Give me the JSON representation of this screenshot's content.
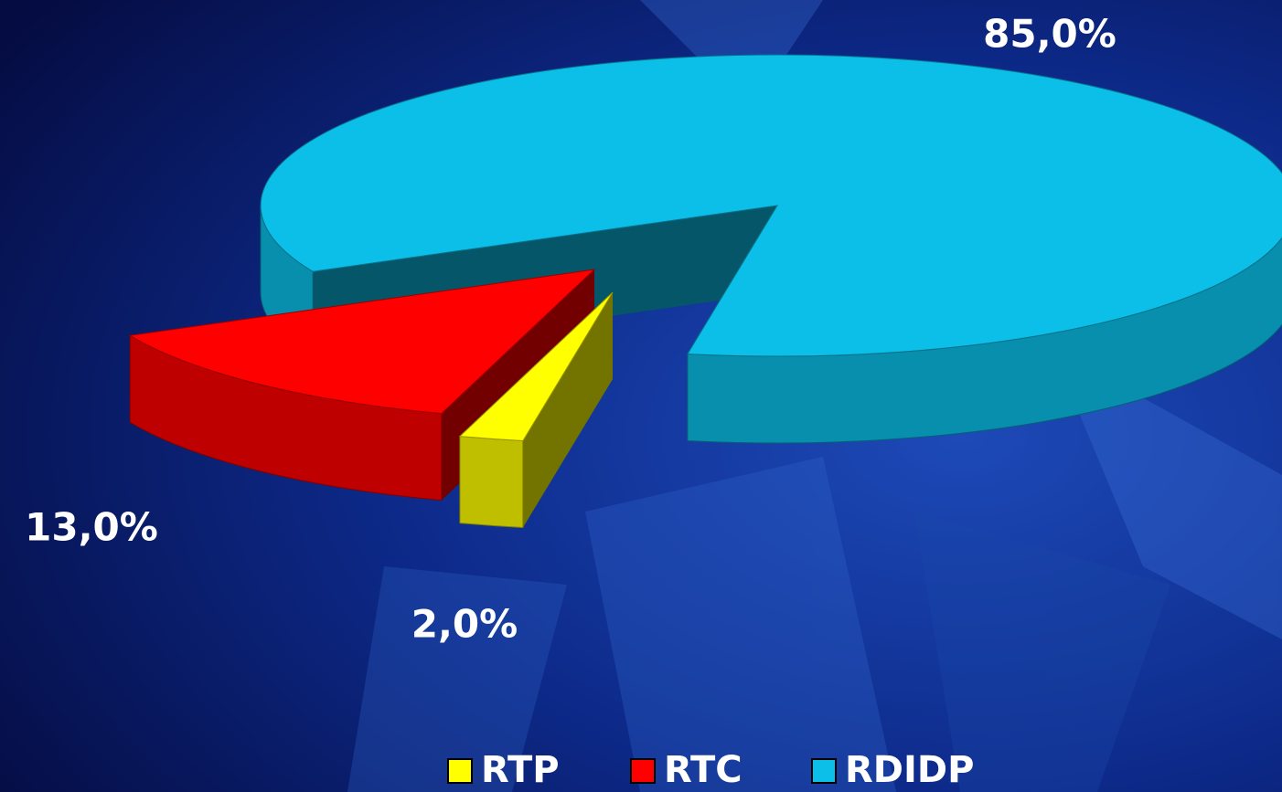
{
  "chart_data": {
    "type": "pie",
    "categories": [
      "RTP",
      "RTC",
      "RDIDP"
    ],
    "values": [
      2,
      13,
      85
    ],
    "value_labels": [
      "2,0%",
      "13,0%",
      "85,0%"
    ],
    "colors": [
      "#ffff00",
      "#ff0000",
      "#0bbfe8"
    ],
    "legend": "bottom"
  }
}
